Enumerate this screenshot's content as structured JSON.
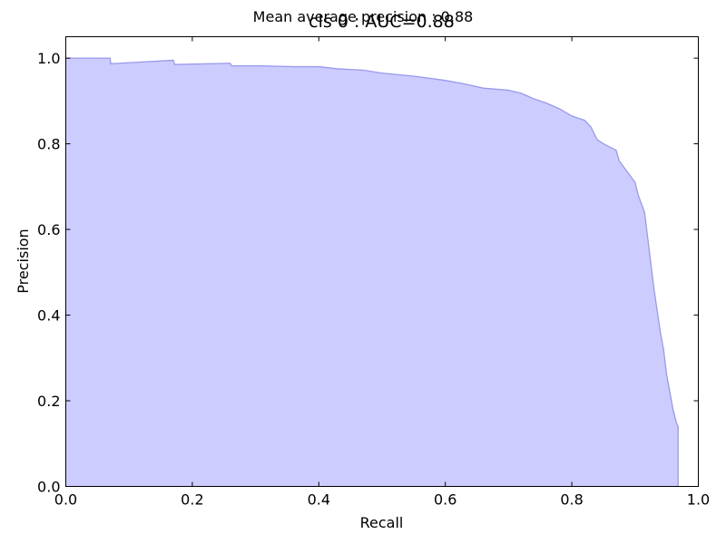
{
  "figure": {
    "suptitle": "Mean average precision : 0.88"
  },
  "chart_data": {
    "type": "area",
    "title": "cls 0 : AUC=0.88",
    "xlabel": "Recall",
    "ylabel": "Precision",
    "xlim": [
      0.0,
      1.0
    ],
    "ylim": [
      0.0,
      1.05
    ],
    "xticks": [
      "0.0",
      "0.2",
      "0.4",
      "0.6",
      "0.8",
      "1.0"
    ],
    "yticks": [
      "0.0",
      "0.2",
      "0.4",
      "0.6",
      "0.8",
      "1.0"
    ],
    "grid": false,
    "fill_color": "#ccccff",
    "line_color": "#9999ee",
    "series": [
      {
        "x": [
          0.0,
          0.07,
          0.071,
          0.17,
          0.172,
          0.26,
          0.262,
          0.31,
          0.36,
          0.4,
          0.43,
          0.47,
          0.5,
          0.55,
          0.6,
          0.63,
          0.66,
          0.7,
          0.72,
          0.74,
          0.76,
          0.78,
          0.8,
          0.82,
          0.83,
          0.84,
          0.85,
          0.87,
          0.875,
          0.89,
          0.9,
          0.905,
          0.91,
          0.915,
          0.92,
          0.925,
          0.93,
          0.935,
          0.94,
          0.945,
          0.95,
          0.955,
          0.96,
          0.965,
          0.968,
          0.968
        ],
        "y": [
          1.0,
          1.0,
          0.987,
          0.995,
          0.985,
          0.988,
          0.982,
          0.982,
          0.98,
          0.98,
          0.975,
          0.972,
          0.965,
          0.958,
          0.948,
          0.94,
          0.93,
          0.925,
          0.918,
          0.905,
          0.895,
          0.882,
          0.865,
          0.855,
          0.84,
          0.81,
          0.8,
          0.785,
          0.76,
          0.73,
          0.71,
          0.68,
          0.66,
          0.64,
          0.58,
          0.52,
          0.46,
          0.41,
          0.36,
          0.32,
          0.26,
          0.22,
          0.18,
          0.15,
          0.14,
          0.0
        ]
      }
    ]
  }
}
